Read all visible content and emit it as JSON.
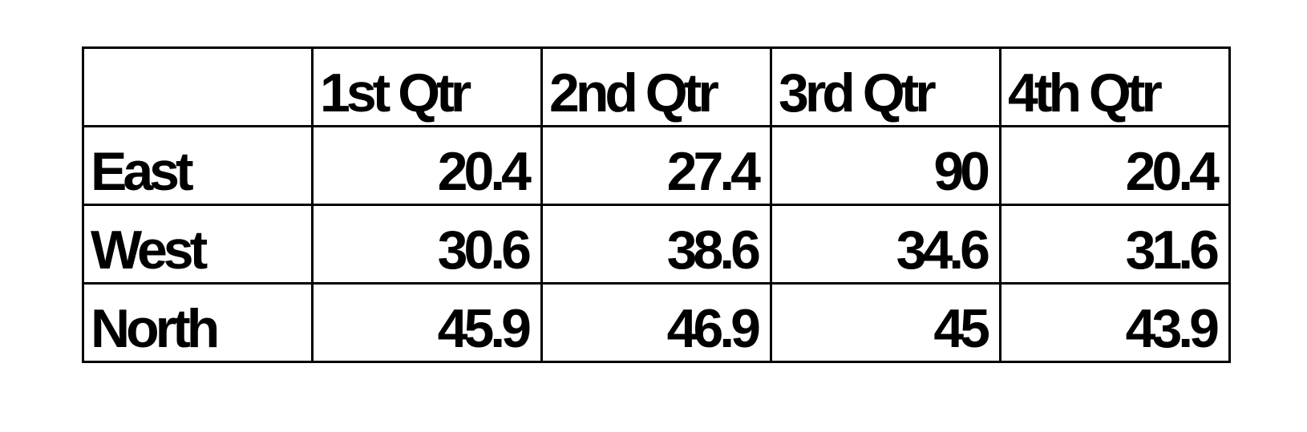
{
  "chart_data": {
    "type": "table",
    "columns": [
      "",
      "1st Qtr",
      "2nd Qtr",
      "3rd Qtr",
      "4th Qtr"
    ],
    "rows": [
      {
        "label": "East",
        "values": [
          "20.4",
          "27.4",
          "90",
          "20.4"
        ]
      },
      {
        "label": "West",
        "values": [
          "30.6",
          "38.6",
          "34.6",
          "31.6"
        ]
      },
      {
        "label": "North",
        "values": [
          "45.9",
          "46.9",
          "45",
          "43.9"
        ]
      }
    ]
  }
}
